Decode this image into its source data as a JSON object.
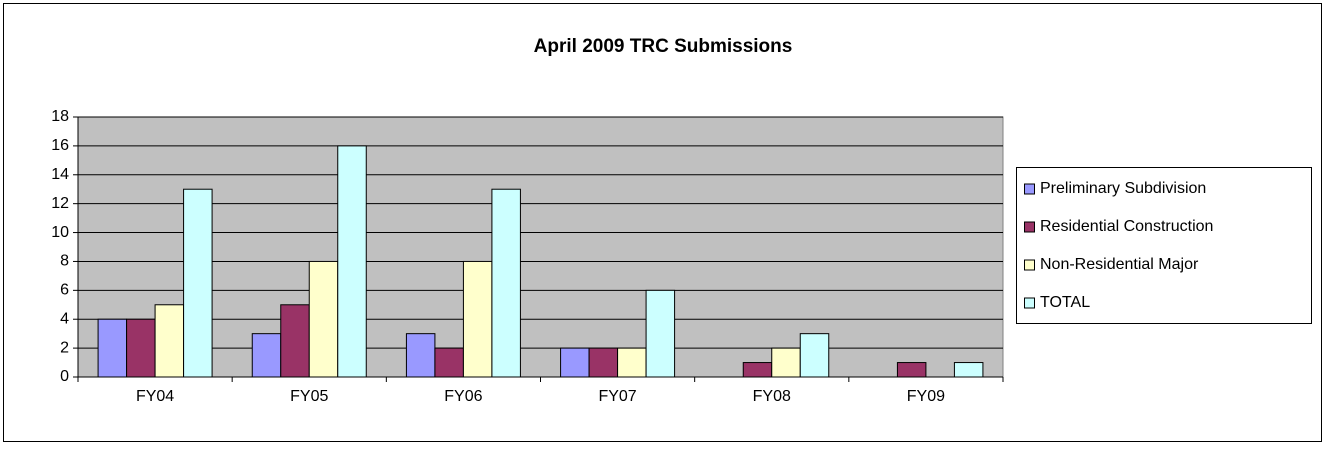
{
  "chart_data": {
    "type": "bar",
    "title": "April 2009 TRC Submissions",
    "categories": [
      "FY04",
      "FY05",
      "FY06",
      "FY07",
      "FY08",
      "FY09"
    ],
    "series": [
      {
        "name": "Preliminary Subdivision",
        "color": "#9999ff",
        "values": [
          4,
          3,
          3,
          2,
          0,
          0
        ]
      },
      {
        "name": "Residential Construction",
        "color": "#993366",
        "values": [
          4,
          5,
          2,
          2,
          1,
          1
        ]
      },
      {
        "name": "Non-Residential Major",
        "color": "#ffffcc",
        "values": [
          5,
          8,
          8,
          2,
          2,
          0
        ]
      },
      {
        "name": "TOTAL",
        "color": "#ccffff",
        "values": [
          13,
          16,
          13,
          6,
          3,
          1
        ]
      }
    ],
    "ylim": [
      0,
      18
    ],
    "yticks": [
      0,
      2,
      4,
      6,
      8,
      10,
      12,
      14,
      16,
      18
    ],
    "grid": true,
    "legend": "right"
  }
}
